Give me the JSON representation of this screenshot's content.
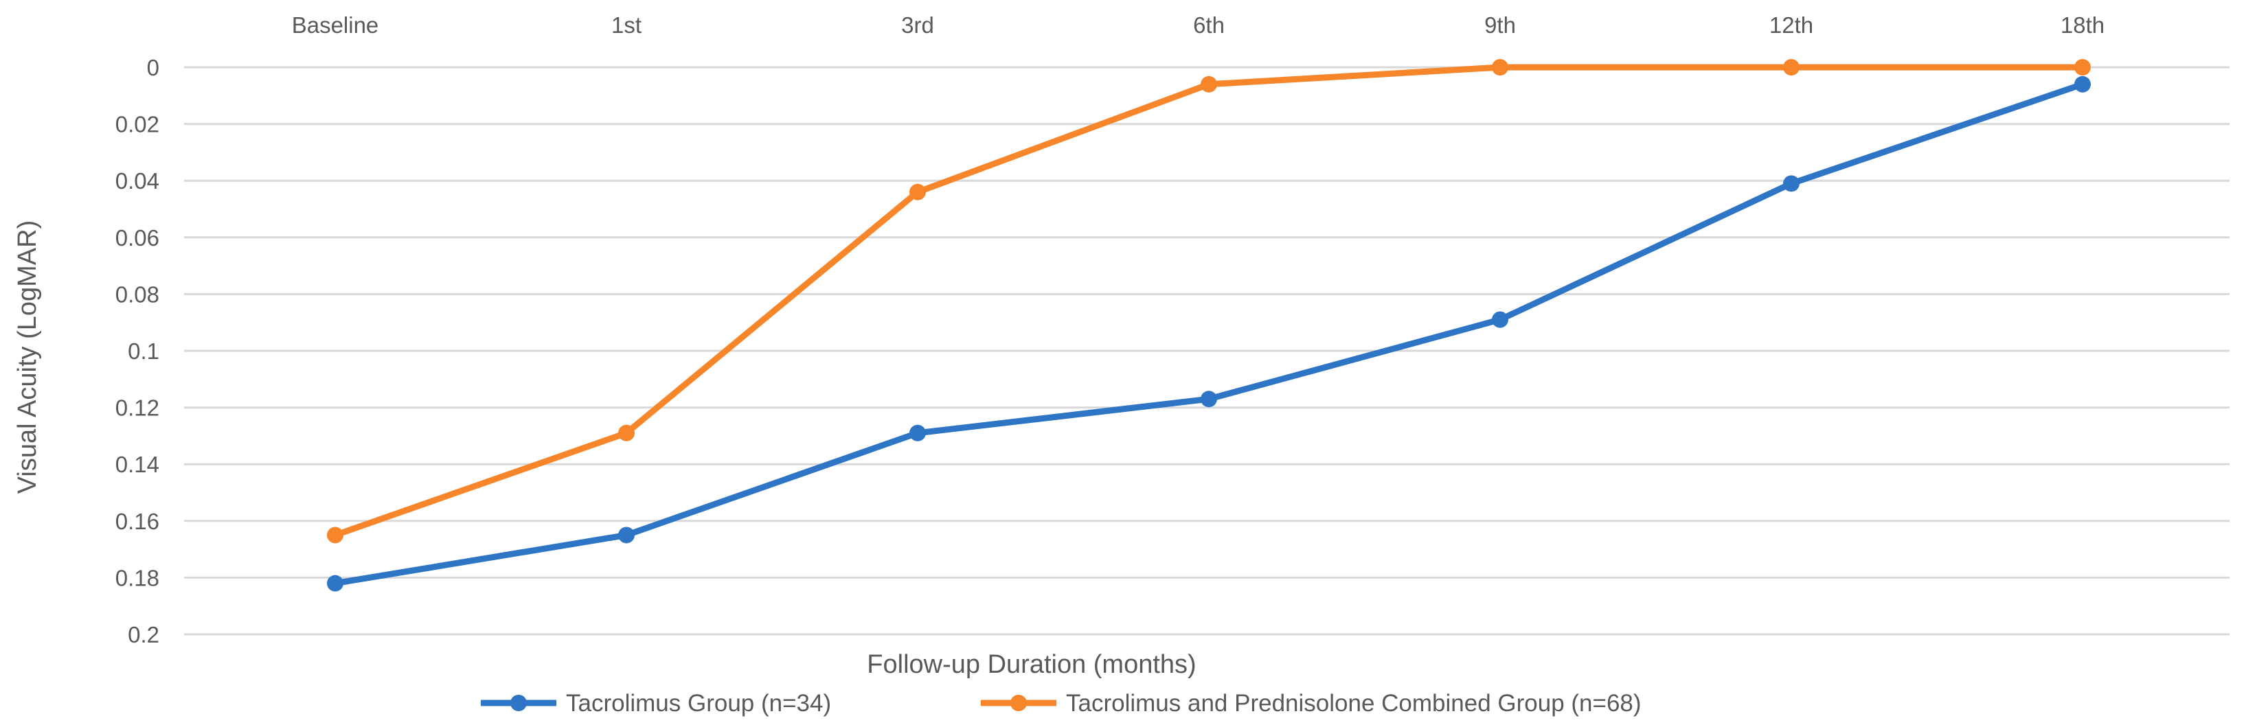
{
  "chart_data": {
    "type": "line",
    "title": "",
    "xlabel": "Follow-up Duration (months)",
    "ylabel": "Visual Acuity (LogMAR)",
    "categories": [
      "Baseline",
      "1st",
      "3rd",
      "6th",
      "9th",
      "12th",
      "18th"
    ],
    "y_ticks": [
      "0",
      "0.02",
      "0.04",
      "0.06",
      "0.08",
      "0.1",
      "0.12",
      "0.14",
      "0.16",
      "0.18",
      "0.2"
    ],
    "ylim": [
      0,
      0.2
    ],
    "y_axis_reversed": true,
    "x_axis_position": "top",
    "grid": true,
    "legend_position": "bottom",
    "series": [
      {
        "name": "Tacrolimus Group (n=34)",
        "color": "#2e75c5",
        "values": [
          0.182,
          0.165,
          0.129,
          0.117,
          0.089,
          0.041,
          0.006
        ]
      },
      {
        "name": "Tacrolimus and Prednisolone Combined Group (n=68)",
        "color": "#f7852a",
        "values": [
          0.165,
          0.129,
          0.044,
          0.006,
          0.0,
          0.0,
          0.0
        ]
      }
    ]
  }
}
